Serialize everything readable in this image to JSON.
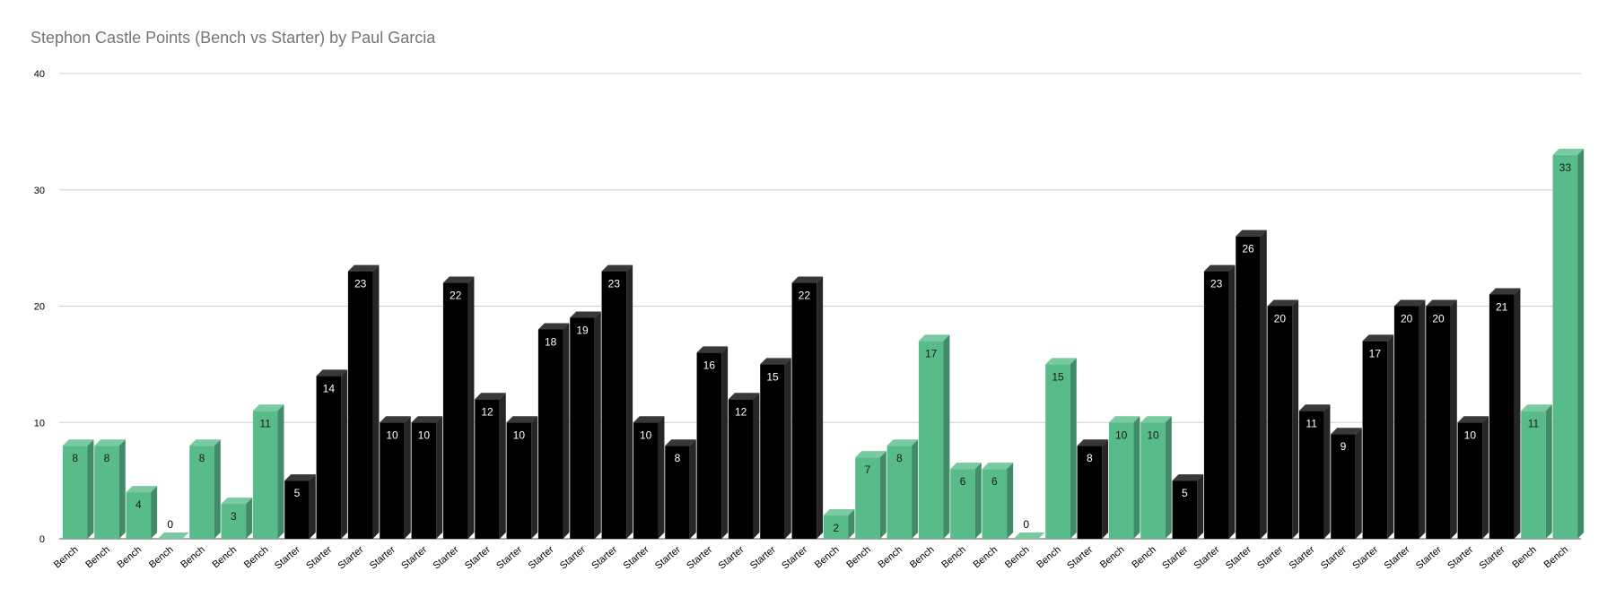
{
  "chart_data": {
    "type": "bar",
    "title": "Stephon Castle Points (Bench vs Starter) by Paul Garcia",
    "xlabel": "",
    "ylabel": "",
    "ylim": [
      0,
      40
    ],
    "yticks": [
      0,
      10,
      20,
      30,
      40
    ],
    "grid": true,
    "legend": "none",
    "categories": [
      "Bench",
      "Bench",
      "Bench",
      "Bench",
      "Bench",
      "Bench",
      "Bench",
      "Starter",
      "Starter",
      "Starter",
      "Starter",
      "Starter",
      "Starter",
      "Starter",
      "Starter",
      "Starter",
      "Starter",
      "Starter",
      "Starter",
      "Starter",
      "Starter",
      "Starter",
      "Starter",
      "Starter",
      "Bench",
      "Bench",
      "Bench",
      "Bench",
      "Bench",
      "Bench",
      "Bench",
      "Bench",
      "Starter",
      "Bench",
      "Bench",
      "Starter",
      "Starter",
      "Starter",
      "Starter",
      "Starter",
      "Starter",
      "Starter",
      "Starter",
      "Starter",
      "Starter",
      "Starter",
      "Bench",
      "Bench"
    ],
    "values": [
      8,
      8,
      4,
      0,
      8,
      3,
      11,
      5,
      14,
      23,
      10,
      10,
      22,
      12,
      10,
      18,
      19,
      23,
      10,
      8,
      16,
      12,
      15,
      22,
      2,
      7,
      8,
      17,
      6,
      6,
      0,
      15,
      8,
      10,
      10,
      5,
      23,
      26,
      20,
      11,
      9,
      17,
      20,
      20,
      10,
      21,
      11,
      33
    ],
    "colors": {
      "Bench": "#57bb8a",
      "Starter": "#000000"
    }
  }
}
